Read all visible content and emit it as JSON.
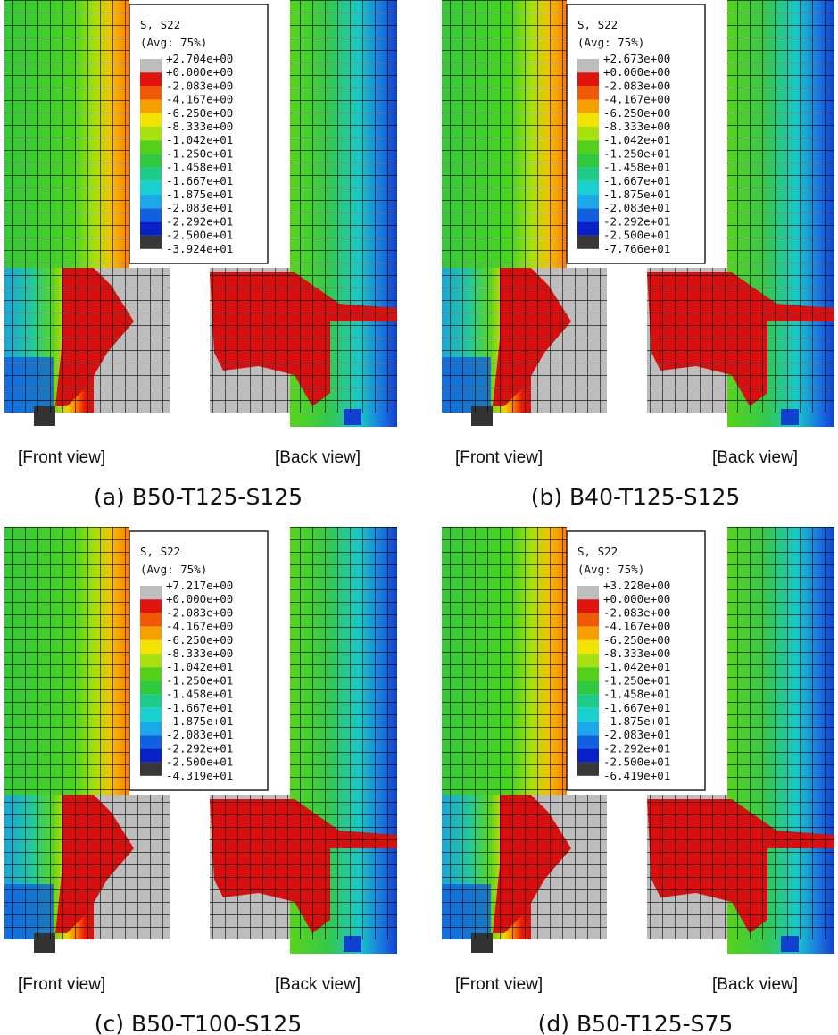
{
  "panels": [
    {
      "legend": {
        "title": "S, S22",
        "average": "(Avg: 75%)",
        "labels": [
          "+2.704e+00",
          "+0.000e+00",
          "-2.083e+00",
          "-4.167e+00",
          "-6.250e+00",
          "-8.333e+00",
          "-1.042e+01",
          "-1.250e+01",
          "-1.458e+01",
          "-1.667e+01",
          "-1.875e+01",
          "-2.083e+01",
          "-2.292e+01",
          "-2.500e+01",
          "-3.924e+01"
        ]
      },
      "front_label": "[Front view]",
      "back_label": "[Back view]",
      "caption": "(a) B50-T125-S125"
    },
    {
      "legend": {
        "title": "S, S22",
        "average": "(Avg: 75%)",
        "labels": [
          "+2.673e+00",
          "+0.000e+00",
          "-2.083e+00",
          "-4.167e+00",
          "-6.250e+00",
          "-8.333e+00",
          "-1.042e+01",
          "-1.250e+01",
          "-1.458e+01",
          "-1.667e+01",
          "-1.875e+01",
          "-2.083e+01",
          "-2.292e+01",
          "-2.500e+01",
          "-7.766e+01"
        ]
      },
      "front_label": "[Front view]",
      "back_label": "[Back view]",
      "caption": "(b) B40-T125-S125"
    },
    {
      "legend": {
        "title": "S, S22",
        "average": "(Avg: 75%)",
        "labels": [
          "+7.217e+00",
          "+0.000e+00",
          "-2.083e+00",
          "-4.167e+00",
          "-6.250e+00",
          "-8.333e+00",
          "-1.042e+01",
          "-1.250e+01",
          "-1.458e+01",
          "-1.667e+01",
          "-1.875e+01",
          "-2.083e+01",
          "-2.292e+01",
          "-2.500e+01",
          "-4.319e+01"
        ]
      },
      "front_label": "[Front view]",
      "back_label": "[Back view]",
      "caption": "(c) B50-T100-S125"
    },
    {
      "legend": {
        "title": "S, S22",
        "average": "(Avg: 75%)",
        "labels": [
          "+3.228e+00",
          "+0.000e+00",
          "-2.083e+00",
          "-4.167e+00",
          "-6.250e+00",
          "-8.333e+00",
          "-1.042e+01",
          "-1.250e+01",
          "-1.458e+01",
          "-1.667e+01",
          "-1.875e+01",
          "-2.083e+01",
          "-2.292e+01",
          "-2.500e+01",
          "-6.419e+01"
        ]
      },
      "front_label": "[Front view]",
      "back_label": "[Back view]",
      "caption": "(d) B50-T125-S75"
    }
  ]
}
